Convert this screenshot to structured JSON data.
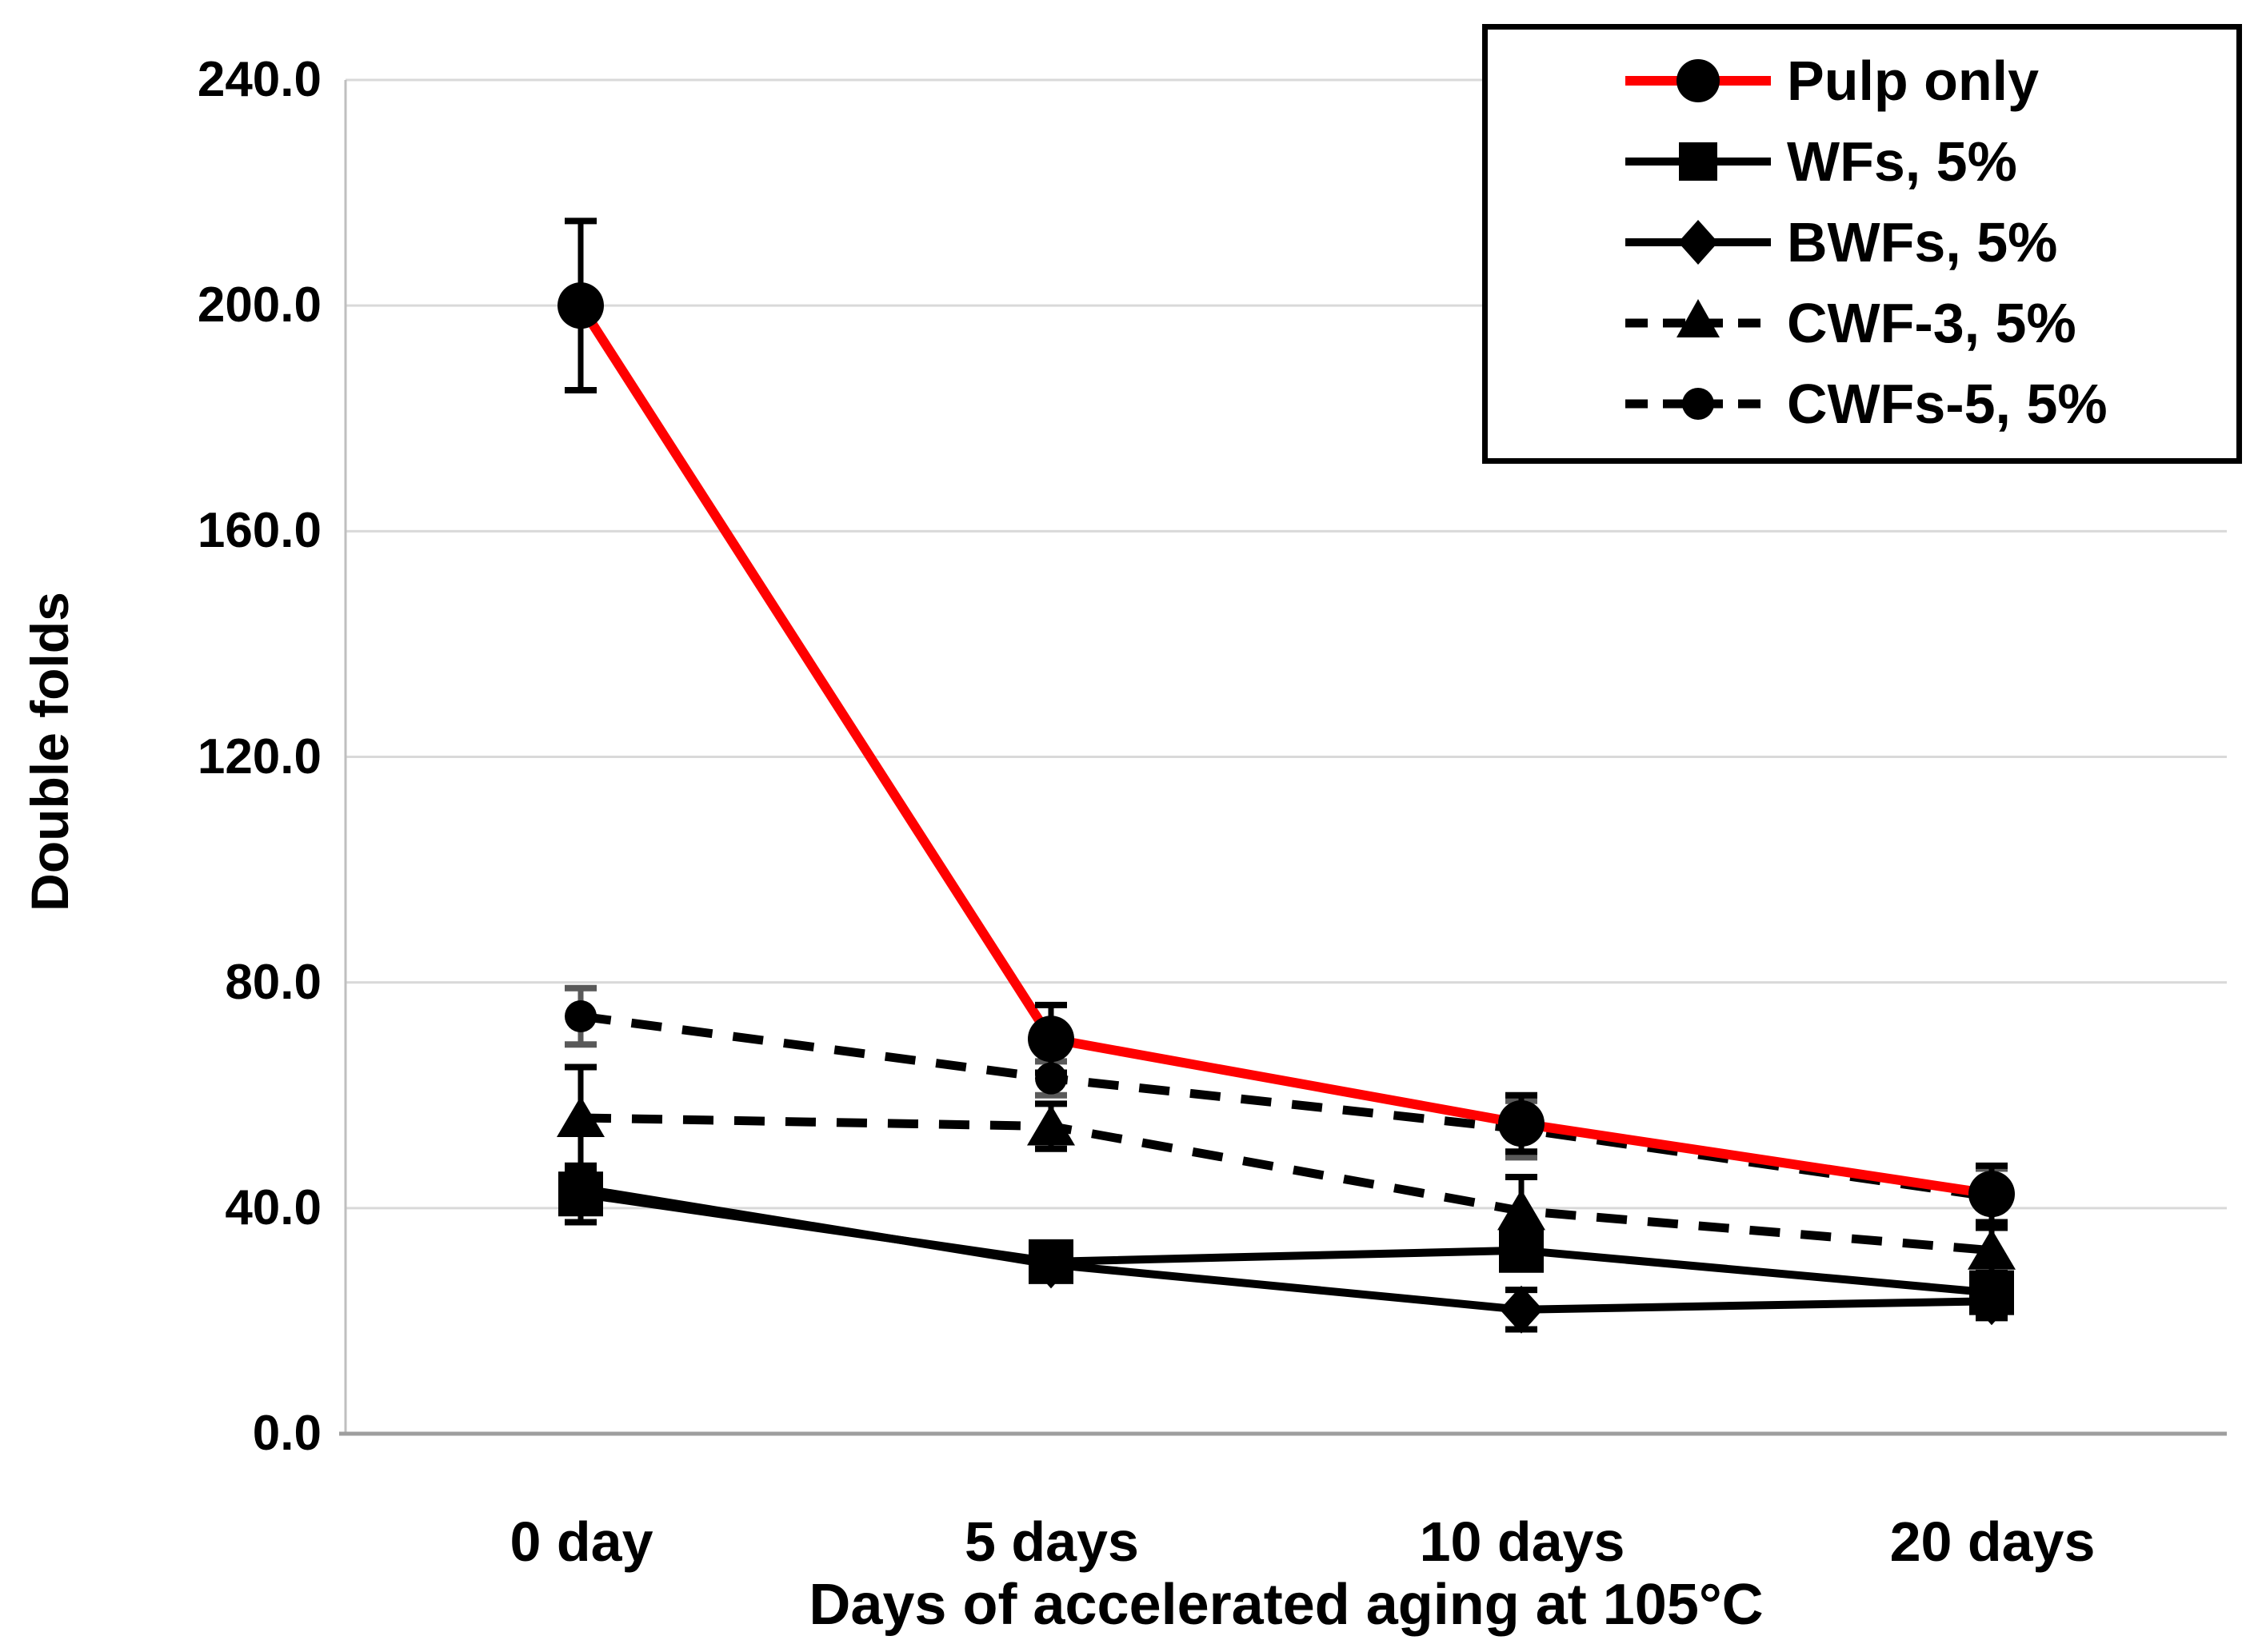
{
  "chart_data": {
    "type": "line",
    "title": "",
    "xlabel": "Days of accelerated aging at 105°C",
    "ylabel": "Double folds",
    "categories": [
      "0 day",
      "5 days",
      "10 days",
      "20 days"
    ],
    "y_tick_labels": [
      "240.0",
      "200.0",
      "160.0",
      "120.0",
      "80.0",
      "40.0",
      "0.0"
    ],
    "y_tick_values": [
      240,
      200,
      160,
      120,
      80,
      40,
      0
    ],
    "ylim": [
      0,
      240
    ],
    "grid": "horizontal",
    "legend_position": "top-right",
    "series": [
      {
        "name": "Pulp only",
        "line_color": "#ff0000",
        "line_style": "solid",
        "marker": "circle-large",
        "marker_color": "#000000",
        "values": [
          200,
          70,
          55,
          42.5
        ],
        "errors": [
          15,
          6,
          5,
          5
        ]
      },
      {
        "name": "WFs, 5%",
        "line_color": "#000000",
        "line_style": "solid",
        "marker": "square",
        "marker_color": "#000000",
        "values": [
          42.5,
          30.5,
          32.5,
          25
        ],
        "errors": [
          5,
          2,
          3,
          3
        ]
      },
      {
        "name": "BWFs, 5%",
        "line_color": "#000000",
        "line_style": "solid",
        "marker": "diamond",
        "marker_color": "#000000",
        "values": [
          43.5,
          30,
          22,
          23.5
        ],
        "errors": [
          4,
          2,
          3.5,
          3
        ]
      },
      {
        "name": "CWF-3, 5%",
        "line_color": "#000000",
        "line_style": "dashed",
        "marker": "triangle",
        "marker_color": "#000000",
        "values": [
          56,
          54.5,
          39.5,
          32.5
        ],
        "errors": [
          9,
          4,
          6,
          4
        ]
      },
      {
        "name": "CWFs-5, 5%",
        "line_color": "#000000",
        "line_style": "dashed",
        "marker": "circle-small",
        "marker_color": "#000000",
        "values": [
          74,
          63,
          54,
          42
        ],
        "errors": [
          5,
          3,
          5,
          5
        ]
      }
    ],
    "colors": {
      "background": "#ffffff",
      "gridline": "#d9d9d9",
      "axis_line": "#9e9e9e",
      "error_bar": "#000000",
      "red_series": "#ff0000",
      "black_series": "#000000"
    }
  }
}
